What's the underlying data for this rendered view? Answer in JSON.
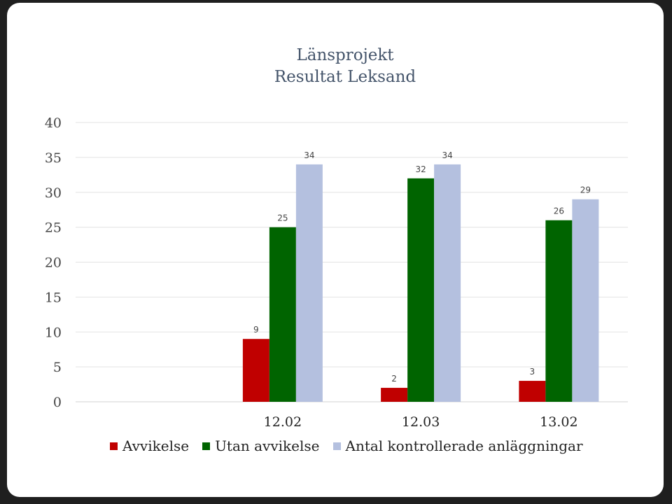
{
  "chart_data": {
    "type": "bar",
    "title": [
      "Länsprojekt",
      "Resultat Leksand"
    ],
    "xlabel": "",
    "ylabel": "",
    "ylim": [
      0,
      40
    ],
    "yticks": [
      0,
      5,
      10,
      15,
      20,
      25,
      30,
      35,
      40
    ],
    "grid": true,
    "legend_position": "bottom",
    "categories": [
      "",
      "12.02",
      "12.03",
      "13.02"
    ],
    "series": [
      {
        "name": "Avvikelse",
        "color": "#c00000",
        "values": [
          null,
          9,
          2,
          3
        ]
      },
      {
        "name": "Utan avvikelse",
        "color": "#006400",
        "values": [
          null,
          25,
          32,
          26
        ]
      },
      {
        "name": "Antal kontrollerade anläggningar",
        "color": "#b4c0df",
        "values": [
          null,
          34,
          34,
          29
        ]
      }
    ]
  }
}
